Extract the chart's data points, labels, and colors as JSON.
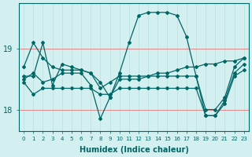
{
  "xlabel": "Humidex (Indice chaleur)",
  "background_color": "#d4efef",
  "line_color": "#006666",
  "grid_color_v": "#b8dede",
  "grid_color_h": "#e08888",
  "xlim": [
    -0.5,
    23.5
  ],
  "ylim": [
    17.65,
    19.75
  ],
  "yticks": [
    18,
    19
  ],
  "xticks": [
    0,
    1,
    2,
    3,
    4,
    5,
    6,
    7,
    8,
    9,
    10,
    11,
    12,
    13,
    14,
    15,
    16,
    17,
    18,
    19,
    20,
    21,
    22,
    23
  ],
  "series": [
    [
      18.7,
      19.1,
      18.85,
      18.7,
      18.65,
      18.65,
      18.65,
      18.6,
      18.45,
      18.2,
      18.6,
      19.1,
      19.55,
      19.6,
      19.6,
      19.6,
      19.55,
      19.2,
      18.55,
      18.0,
      18.0,
      18.2,
      18.7,
      18.85
    ],
    [
      18.55,
      18.55,
      19.1,
      18.4,
      18.75,
      18.7,
      18.65,
      18.6,
      18.35,
      18.45,
      18.55,
      18.55,
      18.55,
      18.55,
      18.6,
      18.6,
      18.65,
      18.7,
      18.7,
      18.75,
      18.75,
      18.8,
      18.8,
      18.85
    ],
    [
      18.5,
      18.6,
      18.45,
      18.5,
      18.6,
      18.6,
      18.6,
      18.4,
      17.85,
      18.2,
      18.5,
      18.5,
      18.5,
      18.55,
      18.55,
      18.55,
      18.55,
      18.55,
      18.55,
      17.9,
      17.9,
      18.15,
      18.6,
      18.75
    ],
    [
      18.45,
      18.25,
      18.35,
      18.35,
      18.35,
      18.35,
      18.35,
      18.35,
      18.25,
      18.25,
      18.35,
      18.35,
      18.35,
      18.35,
      18.35,
      18.35,
      18.35,
      18.35,
      18.35,
      17.9,
      17.9,
      18.1,
      18.55,
      18.65
    ]
  ]
}
